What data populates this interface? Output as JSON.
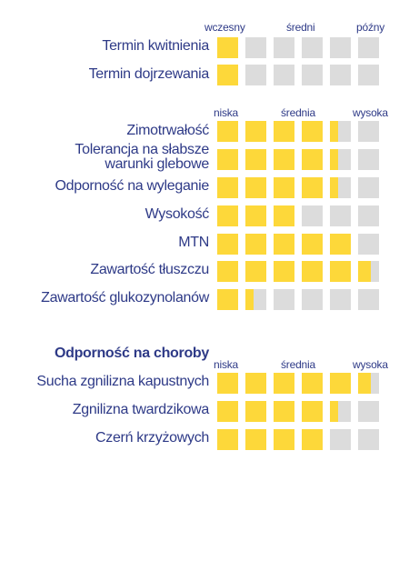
{
  "colors": {
    "filled": "#fdd83a",
    "empty": "#dcdcdc",
    "text": "#2e3a87"
  },
  "flowering": {
    "scale": {
      "left": "wczesny",
      "mid": "średni",
      "right": "późny"
    },
    "rows": [
      {
        "label": "Termin kwitnienia",
        "value": 1
      },
      {
        "label": "Termin dojrzewania",
        "value": 1
      }
    ]
  },
  "traits": {
    "scale": {
      "left": "niska",
      "mid": "średnia",
      "right": "wysoka"
    },
    "rows": [
      {
        "label": "Zimotrwałość",
        "value": 4.4
      },
      {
        "label_line1": "Tolerancja na słabsze",
        "label_line2": "warunki glebowe",
        "value": 4.4
      },
      {
        "label": "Odporność na wyleganie",
        "value": 4.4
      },
      {
        "label": "Wysokość",
        "value": 3
      },
      {
        "label": "MTN",
        "value": 5
      },
      {
        "label": "Zawartość tłuszczu",
        "value": 5.6
      },
      {
        "label": "Zawartość glukozynolanów",
        "value": 1.4
      }
    ]
  },
  "diseases": {
    "heading": "Odporność na choroby",
    "scale": {
      "left": "niska",
      "mid": "średnia",
      "right": "wysoka"
    },
    "rows": [
      {
        "label": "Sucha zgnilizna kapustnych",
        "value": 5.6
      },
      {
        "label": "Zgnilizna twardzikowa",
        "value": 4.4
      },
      {
        "label": "Czerń krzyżowych",
        "value": 4
      }
    ]
  }
}
